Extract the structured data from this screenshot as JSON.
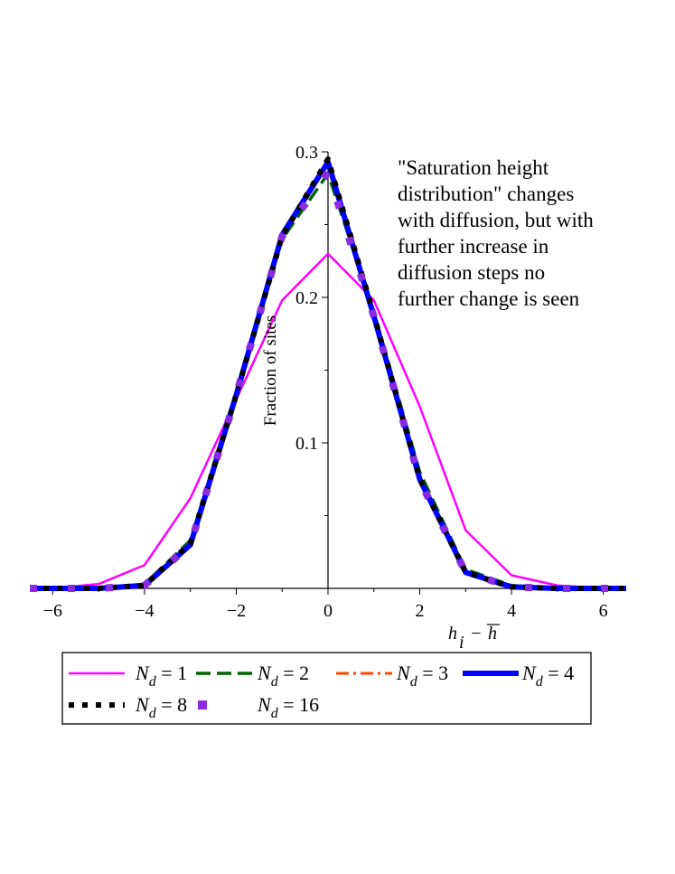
{
  "chart_data": {
    "type": "line",
    "title": "",
    "xlabel": "h_i - h̄",
    "xlabel_parts": {
      "base": "h",
      "sub": "i",
      "minus": "−",
      "bar": "h"
    },
    "ylabel": "Fraction of sites",
    "xlim": [
      -6.5,
      6.5
    ],
    "ylim": [
      0,
      0.3
    ],
    "xticks": [
      -6,
      -4,
      -2,
      0,
      2,
      4,
      6
    ],
    "xtick_labels": [
      "−6",
      "−4",
      "−2",
      "0",
      "2",
      "4",
      "6"
    ],
    "yticks": [
      0.1,
      0.2,
      0.3
    ],
    "ytick_labels": [
      "0.1",
      "0.2",
      "0.3"
    ],
    "grid": false,
    "annotation": [
      "\"Saturation height",
      "distribution\" changes",
      "with diffusion, but with",
      "further increase in",
      "diffusion steps no",
      "further change is seen"
    ],
    "legend_placement": "bottom",
    "legend_symbol": "N",
    "legend_subscript": "d",
    "series": [
      {
        "name": "N_d = 1",
        "label_value": "1",
        "color": "#ff00ff",
        "style": "solid",
        "x": [
          -6.5,
          -6,
          -5,
          -4,
          -3,
          -2,
          -1,
          0,
          1,
          2,
          3,
          4,
          5,
          6,
          6.5
        ],
        "y": [
          0.0,
          0.0,
          0.003,
          0.016,
          0.062,
          0.13,
          0.198,
          0.23,
          0.198,
          0.125,
          0.04,
          0.009,
          0.002,
          0.0,
          0.0
        ]
      },
      {
        "name": "N_d = 2",
        "label_value": "2",
        "color": "#006400",
        "style": "dash",
        "x": [
          -6.5,
          -6,
          -5,
          -4,
          -3,
          -2,
          -1,
          0,
          1,
          2,
          3,
          4,
          5,
          6,
          6.5
        ],
        "y": [
          0.0,
          0.0,
          0.0,
          0.003,
          0.033,
          0.135,
          0.24,
          0.285,
          0.19,
          0.08,
          0.013,
          0.002,
          0.0,
          0.0,
          0.0
        ]
      },
      {
        "name": "N_d = 3",
        "label_value": "3",
        "color": "#ff4500",
        "style": "dashdot",
        "x": [
          -6.5,
          -6,
          -5,
          -4,
          -3,
          -2,
          -1,
          0,
          1,
          2,
          3,
          4,
          5,
          6,
          6.5
        ],
        "y": [
          0.0,
          0.0,
          0.0,
          0.002,
          0.031,
          0.132,
          0.243,
          0.293,
          0.19,
          0.075,
          0.011,
          0.001,
          0.0,
          0.0,
          0.0
        ]
      },
      {
        "name": "N_d = 4",
        "label_value": "4",
        "color": "#0000ff",
        "style": "thick",
        "x": [
          -6.5,
          -6,
          -5,
          -4,
          -3,
          -2,
          -1,
          0,
          1,
          2,
          3,
          4,
          5,
          6,
          6.5
        ],
        "y": [
          0.0,
          0.0,
          0.0,
          0.002,
          0.03,
          0.133,
          0.243,
          0.293,
          0.187,
          0.075,
          0.011,
          0.001,
          0.0,
          0.0,
          0.0
        ]
      },
      {
        "name": "N_d = 8",
        "label_value": "8",
        "color": "#000000",
        "style": "dotted",
        "x": [
          -6.5,
          -6,
          -5,
          -4,
          -3,
          -2,
          -1,
          0,
          1,
          2,
          3,
          4,
          5,
          6,
          6.5
        ],
        "y": [
          0.0,
          0.0,
          0.0,
          0.002,
          0.031,
          0.133,
          0.242,
          0.295,
          0.188,
          0.075,
          0.011,
          0.001,
          0.0,
          0.0,
          0.0
        ]
      },
      {
        "name": "N_d = 16",
        "label_value": "16",
        "color": "#8a2be2",
        "style": "squares",
        "x": [
          -6.5,
          -6,
          -5,
          -4,
          -3,
          -2,
          -1,
          0,
          1,
          2,
          3,
          4,
          5,
          6,
          6.5
        ],
        "y": [
          0.0,
          0.0,
          0.0,
          0.002,
          0.03,
          0.133,
          0.242,
          0.286,
          0.187,
          0.074,
          0.011,
          0.001,
          0.0,
          0.0,
          0.0
        ]
      }
    ]
  }
}
